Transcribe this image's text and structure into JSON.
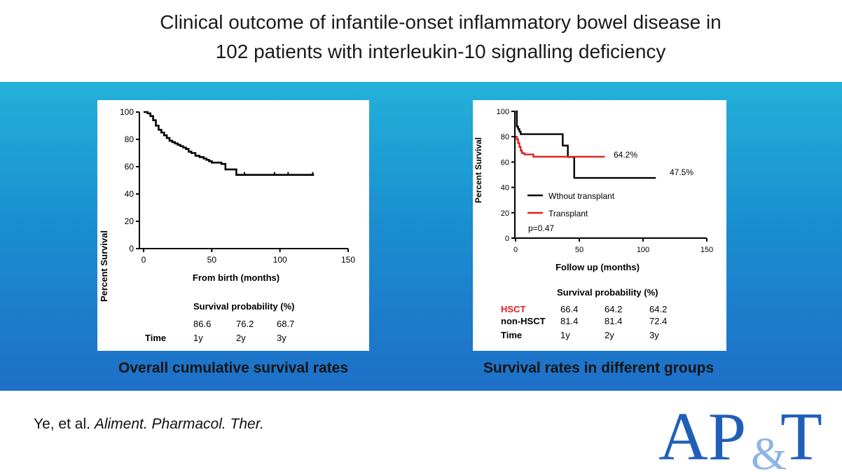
{
  "title": {
    "line1": "Clinical outcome of infantile-onset inflammatory bowel disease in",
    "line2": "102 patients with interleukin-10 signalling deficiency"
  },
  "colors": {
    "accent": "#1f6fc7",
    "band_top": "#24b0d8",
    "transplant": "#e02020",
    "logo": "#1f5fb8"
  },
  "left_panel": {
    "caption": "Overall cumulative survival rates",
    "table": {
      "header": "Survival probability (%)",
      "values": [
        "86.6",
        "76.2",
        "68.7"
      ],
      "row_label": "Time",
      "times": [
        "1y",
        "2y",
        "3y"
      ]
    }
  },
  "right_panel": {
    "caption": "Survival rates in different groups",
    "table": {
      "header": "Survival probability (%)",
      "rows": [
        {
          "label": "HSCT",
          "values": [
            "66.4",
            "64.2",
            "64.2"
          ]
        },
        {
          "label": "non-HSCT",
          "values": [
            "81.4",
            "81.4",
            "72.4"
          ]
        },
        {
          "label": "Time",
          "values": [
            "1y",
            "2y",
            "3y"
          ]
        }
      ]
    }
  },
  "citation": {
    "authors": "Ye, et al.",
    "journal": "Aliment. Pharmacol. Ther."
  },
  "logo": {
    "text_left": "AP",
    "amp": "&",
    "text_right": "T"
  },
  "chart_data": [
    {
      "type": "line",
      "title": "",
      "xlabel": "From birth (months)",
      "ylabel": "Percent Survival",
      "xlim": [
        0,
        150
      ],
      "ylim": [
        0,
        100
      ],
      "xticks": [
        0,
        50,
        100,
        150
      ],
      "yticks": [
        0,
        20,
        40,
        60,
        80,
        100
      ],
      "series": [
        {
          "name": "Overall",
          "color": "#000000",
          "x": [
            0,
            3,
            5,
            7,
            9,
            11,
            13,
            15,
            17,
            19,
            21,
            23,
            25,
            27,
            29,
            31,
            33,
            35,
            38,
            41,
            44,
            46,
            48,
            50,
            52,
            56,
            57,
            60,
            62,
            66,
            68,
            72,
            80,
            90,
            100,
            110,
            125
          ],
          "y": [
            100,
            99,
            97,
            94,
            90,
            87,
            85,
            83,
            81,
            79,
            78,
            77,
            76,
            75,
            74,
            73,
            71,
            70,
            68,
            67,
            66,
            65,
            64,
            63,
            63,
            63,
            62,
            58,
            58,
            58,
            54,
            54,
            54,
            54,
            54,
            54,
            54
          ]
        }
      ],
      "censor_x": [
        74,
        96,
        106,
        124
      ]
    },
    {
      "type": "line",
      "title": "",
      "xlabel": "Follow up  (months)",
      "ylabel": "Percent Survival",
      "xlim": [
        0,
        150
      ],
      "ylim": [
        0,
        100
      ],
      "xticks": [
        0,
        50,
        100,
        150
      ],
      "yticks": [
        0,
        20,
        40,
        60,
        80,
        100
      ],
      "legend": [
        "Wthout transplant",
        "Transplant"
      ],
      "p_value": "p=0.47",
      "annotations": [
        "64.2%",
        "47.5%"
      ],
      "series": [
        {
          "name": "Wthout transplant",
          "color": "#000000",
          "x": [
            0,
            1,
            2,
            3,
            4,
            35,
            37,
            41,
            46,
            110
          ],
          "y": [
            100,
            88,
            86,
            84,
            82,
            82,
            73,
            64,
            47.5,
            47.5
          ]
        },
        {
          "name": "Transplant",
          "color": "#e02020",
          "x": [
            0,
            1,
            2,
            3,
            4,
            5,
            6,
            7,
            10,
            14,
            25,
            70
          ],
          "y": [
            80,
            78,
            75,
            72,
            69,
            67,
            67,
            66,
            66,
            64.2,
            64.2,
            64.2
          ]
        }
      ]
    }
  ]
}
